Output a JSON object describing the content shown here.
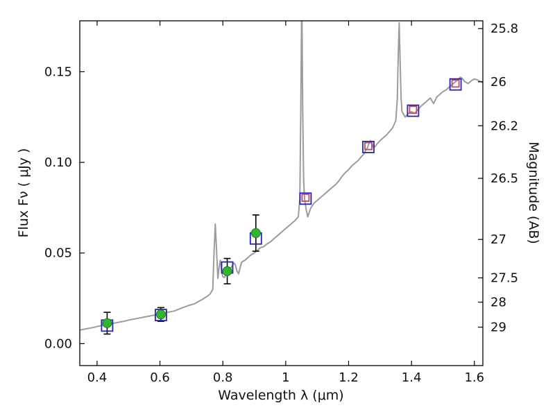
{
  "chart_data": {
    "type": "line",
    "title": "",
    "xlabel": "Wavelength  λ (μm)",
    "ylabel_left": "Flux  Fν  ( μJy )",
    "ylabel_right": "Magnitude (AB)",
    "xlim": [
      0.345,
      1.627
    ],
    "ylim": [
      -0.0121,
      0.1781
    ],
    "grid": false,
    "legend": "none",
    "background": "#ffffff",
    "frame_color": "#000000",
    "x_ticks": {
      "values": [
        0.4,
        0.6,
        0.8,
        1.0,
        1.2,
        1.4,
        1.6
      ],
      "labels": [
        "0.4",
        "0.6",
        "0.8",
        "1",
        "1.2",
        "1.4",
        "1.6"
      ]
    },
    "y_ticks_left": {
      "values": [
        0.0,
        0.05,
        0.1,
        0.15
      ],
      "labels": [
        "0.00",
        "0.05",
        "0.10",
        "0.15"
      ]
    },
    "y_ticks_right": {
      "magnitudes": [
        25.8,
        26,
        26.2,
        26.5,
        27,
        27.5,
        28,
        29
      ],
      "flux_positions": [
        0.1738,
        0.1445,
        0.1202,
        0.0912,
        0.0575,
        0.0363,
        0.0229,
        0.0091
      ],
      "labels": [
        "25.8",
        "26",
        "26.2",
        "26.5",
        "27",
        "27.5",
        "28",
        "29"
      ]
    },
    "series": [
      {
        "name": "model-spectrum",
        "kind": "line",
        "color": "#9b9b9b",
        "width": 2,
        "x": [
          0.345,
          0.36,
          0.375,
          0.39,
          0.4,
          0.415,
          0.43,
          0.445,
          0.46,
          0.475,
          0.49,
          0.5,
          0.515,
          0.53,
          0.545,
          0.56,
          0.575,
          0.59,
          0.6,
          0.615,
          0.63,
          0.645,
          0.66,
          0.675,
          0.69,
          0.7,
          0.71,
          0.72,
          0.73,
          0.74,
          0.75,
          0.76,
          0.768,
          0.772,
          0.776,
          0.78,
          0.784,
          0.788,
          0.792,
          0.796,
          0.8,
          0.805,
          0.81,
          0.815,
          0.82,
          0.825,
          0.83,
          0.835,
          0.84,
          0.845,
          0.85,
          0.855,
          0.86,
          0.87,
          0.88,
          0.89,
          0.9,
          0.91,
          0.92,
          0.93,
          0.94,
          0.95,
          0.96,
          0.97,
          0.98,
          0.99,
          1.0,
          1.01,
          1.02,
          1.03,
          1.04,
          1.045,
          1.048,
          1.051,
          1.054,
          1.057,
          1.06,
          1.065,
          1.07,
          1.075,
          1.08,
          1.09,
          1.1,
          1.11,
          1.12,
          1.13,
          1.14,
          1.15,
          1.16,
          1.17,
          1.18,
          1.19,
          1.2,
          1.21,
          1.22,
          1.23,
          1.24,
          1.25,
          1.255,
          1.26,
          1.265,
          1.27,
          1.275,
          1.28,
          1.29,
          1.3,
          1.31,
          1.32,
          1.33,
          1.34,
          1.35,
          1.355,
          1.358,
          1.361,
          1.364,
          1.367,
          1.37,
          1.375,
          1.38,
          1.385,
          1.39,
          1.395,
          1.4,
          1.405,
          1.41,
          1.42,
          1.43,
          1.44,
          1.45,
          1.46,
          1.465,
          1.47,
          1.475,
          1.48,
          1.49,
          1.5,
          1.51,
          1.52,
          1.53,
          1.54,
          1.55,
          1.555,
          1.56,
          1.57,
          1.58,
          1.59,
          1.6,
          1.61,
          1.62,
          1.627
        ],
        "y": [
          0.0075,
          0.008,
          0.0085,
          0.009,
          0.0095,
          0.01,
          0.0105,
          0.011,
          0.0115,
          0.012,
          0.0125,
          0.013,
          0.0135,
          0.014,
          0.0145,
          0.015,
          0.0155,
          0.016,
          0.0165,
          0.017,
          0.0175,
          0.018,
          0.019,
          0.02,
          0.021,
          0.0215,
          0.022,
          0.023,
          0.024,
          0.025,
          0.026,
          0.0275,
          0.03,
          0.05,
          0.066,
          0.052,
          0.036,
          0.042,
          0.046,
          0.04,
          0.037,
          0.0365,
          0.038,
          0.039,
          0.04,
          0.0415,
          0.043,
          0.0445,
          0.0435,
          0.04,
          0.0385,
          0.042,
          0.045,
          0.046,
          0.0475,
          0.049,
          0.05,
          0.0515,
          0.053,
          0.0535,
          0.055,
          0.056,
          0.0575,
          0.059,
          0.0605,
          0.062,
          0.0635,
          0.065,
          0.0665,
          0.068,
          0.07,
          0.08,
          0.13,
          0.195,
          0.13,
          0.09,
          0.08,
          0.074,
          0.07,
          0.0725,
          0.075,
          0.0775,
          0.079,
          0.0805,
          0.082,
          0.0835,
          0.085,
          0.0865,
          0.088,
          0.09,
          0.0925,
          0.0945,
          0.096,
          0.098,
          0.0995,
          0.101,
          0.103,
          0.105,
          0.107,
          0.108,
          0.1105,
          0.112,
          0.11,
          0.108,
          0.11,
          0.112,
          0.1135,
          0.115,
          0.117,
          0.119,
          0.123,
          0.135,
          0.16,
          0.177,
          0.155,
          0.135,
          0.128,
          0.1265,
          0.125,
          0.126,
          0.127,
          0.1275,
          0.128,
          0.1275,
          0.127,
          0.129,
          0.131,
          0.1325,
          0.134,
          0.1355,
          0.134,
          0.1325,
          0.134,
          0.136,
          0.1375,
          0.139,
          0.14,
          0.1415,
          0.143,
          0.1445,
          0.146,
          0.147,
          0.1465,
          0.1445,
          0.1435,
          0.145,
          0.146,
          0.1455,
          0.1445,
          0.144
        ]
      },
      {
        "name": "model-photometry-blue-squares",
        "kind": "square",
        "color": "#2222cc",
        "size": 16,
        "x": [
          0.432,
          0.603,
          0.814,
          0.905,
          1.063,
          1.263,
          1.405,
          1.54
        ],
        "y": [
          0.01,
          0.0158,
          0.042,
          0.058,
          0.08,
          0.1085,
          0.1285,
          0.143
        ]
      },
      {
        "name": "model-photometry-red-squares",
        "kind": "square",
        "color": "#cc4455",
        "size": 10,
        "x": [
          1.063,
          1.263,
          1.405,
          1.54
        ],
        "y": [
          0.0805,
          0.109,
          0.129,
          0.1435
        ]
      },
      {
        "name": "observed-photometry",
        "kind": "circle",
        "color": "#2eb82e",
        "edge": "#1a7a1a",
        "size": 13,
        "errorbar_color": "#000000",
        "x": [
          0.432,
          0.603,
          0.814,
          0.905
        ],
        "y": [
          0.0113,
          0.0161,
          0.04,
          0.061
        ],
        "yerr": [
          0.006,
          0.0038,
          0.007,
          0.01
        ]
      }
    ]
  }
}
